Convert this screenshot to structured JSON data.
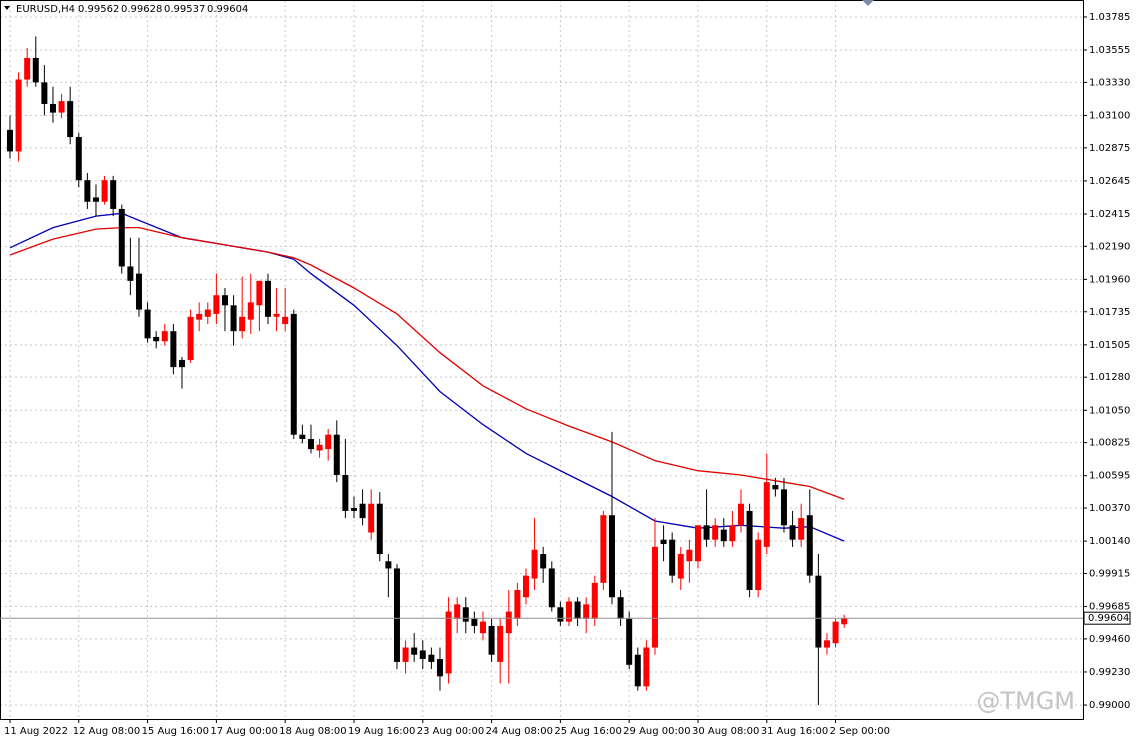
{
  "chart_data": {
    "type": "candlestick",
    "symbol": "EURUSD,H4",
    "up_color": "#ff0000",
    "down_color": "#000000",
    "open": [
      1.03,
      1.0285,
      1.0335,
      1.035,
      1.0333,
      1.0318,
      1.0312,
      1.032,
      1.0295,
      1.0265,
      1.0253,
      1.025,
      1.0265,
      1.0245,
      1.0205,
      1.02,
      1.0175,
      1.0156,
      1.0153,
      1.016,
      1.014,
      1.014,
      1.0168,
      1.017,
      1.0172,
      1.0185,
      1.0178,
      1.016,
      1.0168,
      1.0178,
      1.0195,
      1.017,
      1.0165,
      1.0172,
      1.0088,
      1.0085,
      1.0077,
      1.0078,
      1.0088,
      1.006,
      1.0037,
      1.004,
      1.002,
      1.004,
      1.0,
      0.9995,
      0.993,
      0.994,
      0.9938,
      0.9935,
      0.9932,
      0.9922,
      0.996,
      0.9968,
      0.996,
      0.995,
      0.9955,
      0.993,
      0.995,
      0.996,
      0.9975,
      0.9988,
      1.0005,
      0.9995,
      0.9968,
      0.9958,
      0.9972,
      0.996,
      0.996,
      0.9985,
      1.0032,
      0.9975,
      0.996,
      0.9935,
      0.9913,
      0.994,
      1.0015,
      1.0015,
      0.9988,
      1.0,
      1.0,
      1.0025,
      1.0015,
      1.0022,
      1.0014,
      1.0025,
      1.0035,
      0.998,
      1.001,
      1.0053,
      1.005,
      1.0025,
      1.0015,
      1.0032,
      0.999,
      0.994,
      0.9943,
      0.99562
    ],
    "high": [
      1.031,
      1.034,
      1.0357,
      1.0365,
      1.0345,
      1.033,
      1.0325,
      1.033,
      1.0298,
      1.027,
      1.0262,
      1.0268,
      1.0268,
      1.0248,
      1.0225,
      1.0225,
      1.018,
      1.016,
      1.0165,
      1.0165,
      1.0142,
      1.0175,
      1.018,
      1.018,
      1.02,
      1.019,
      1.0185,
      1.0198,
      1.02,
      1.0195,
      1.02,
      1.019,
      1.019,
      1.0175,
      1.0095,
      1.0095,
      1.0085,
      1.0092,
      1.0098,
      1.0085,
      1.0045,
      1.005,
      1.005,
      1.0048,
      1.0005,
      0.9998,
      0.9945,
      0.995,
      0.9945,
      0.994,
      0.994,
      0.9975,
      0.9975,
      0.9975,
      0.9965,
      0.9965,
      0.996,
      0.996,
      0.998,
      0.9985,
      0.9995,
      1.003,
      1.001,
      1.0,
      0.9972,
      0.9975,
      0.9975,
      0.9975,
      0.999,
      1.0035,
      1.009,
      0.998,
      0.9965,
      0.994,
      0.9945,
      1.003,
      1.0025,
      1.002,
      1.001,
      1.0015,
      1.0025,
      1.005,
      1.003,
      1.003,
      1.0035,
      1.005,
      1.004,
      1.002,
      1.0075,
      1.0058,
      1.0058,
      1.0035,
      1.004,
      1.005,
      1.0005,
      0.995,
      0.996,
      0.99628
    ],
    "low": [
      1.028,
      1.0278,
      1.033,
      1.033,
      1.031,
      1.0305,
      1.0308,
      1.029,
      1.026,
      1.0245,
      1.024,
      1.0248,
      1.024,
      1.02,
      1.0185,
      1.017,
      1.0152,
      1.0148,
      1.015,
      1.013,
      1.012,
      1.0138,
      1.016,
      1.0165,
      1.0165,
      1.016,
      1.015,
      1.0155,
      1.0158,
      1.016,
      1.0165,
      1.016,
      1.016,
      1.0085,
      1.0082,
      1.0075,
      1.0072,
      1.007,
      1.0055,
      1.003,
      1.003,
      1.0025,
      1.0015,
      1.0,
      0.9975,
      0.9925,
      0.9922,
      0.993,
      0.9925,
      0.9925,
      0.991,
      0.9915,
      0.995,
      0.995,
      0.995,
      0.9945,
      0.993,
      0.9915,
      0.9915,
      0.9955,
      0.997,
      0.998,
      0.9985,
      0.9965,
      0.9955,
      0.9955,
      0.9955,
      0.995,
      0.9955,
      0.998,
      0.997,
      0.9955,
      0.9925,
      0.991,
      0.991,
      0.9935,
      1.0,
      0.9985,
      0.998,
      0.9985,
      0.9995,
      1.001,
      1.001,
      1.001,
      1.001,
      1.002,
      0.9975,
      0.9975,
      1.0005,
      1.0045,
      1.002,
      1.001,
      1.001,
      0.9985,
      0.99,
      0.9935,
      0.994,
      0.99537
    ],
    "close": [
      1.0285,
      1.0335,
      1.035,
      1.0333,
      1.0318,
      1.0312,
      1.032,
      1.0295,
      1.0265,
      1.025,
      1.025,
      1.0265,
      1.0245,
      1.0205,
      1.0195,
      1.0175,
      1.0155,
      1.0153,
      1.016,
      1.0135,
      1.0135,
      1.017,
      1.0172,
      1.0175,
      1.0185,
      1.0178,
      1.016,
      1.017,
      1.018,
      1.0195,
      1.017,
      1.0172,
      1.017,
      1.0088,
      1.0085,
      1.0078,
      1.0081,
      1.0088,
      1.006,
      1.0035,
      1.0035,
      1.003,
      1.004,
      1.0005,
      0.9995,
      0.993,
      0.994,
      0.9935,
      0.9932,
      0.993,
      0.992,
      0.9965,
      0.997,
      0.9958,
      0.9955,
      0.9958,
      0.9935,
      0.9955,
      0.9965,
      0.998,
      0.999,
      1.0008,
      0.9995,
      0.9968,
      0.9958,
      0.9972,
      0.996,
      0.997,
      0.9985,
      1.0032,
      0.9975,
      0.996,
      0.9928,
      0.9913,
      0.994,
      1.001,
      1.0012,
      0.999,
      1.0005,
      1.0008,
      1.0025,
      1.0015,
      1.0025,
      1.0014,
      1.0025,
      1.004,
      0.998,
      1.0015,
      1.0055,
      1.005,
      1.0025,
      1.0015,
      1.003,
      0.999,
      0.994,
      0.9945,
      0.9958,
      0.99604
    ],
    "series": [
      {
        "color": "#0000b4",
        "x": [
          0,
          5,
          10,
          13,
          15,
          20,
          25,
          30,
          33,
          35,
          40,
          45,
          50,
          55,
          60,
          65,
          70,
          75,
          80,
          85,
          90,
          93,
          97
        ],
        "values": [
          1.0218,
          1.0232,
          1.024,
          1.0242,
          1.0237,
          1.0225,
          1.022,
          1.0215,
          1.021,
          1.02,
          1.0178,
          1.015,
          1.0118,
          1.0095,
          1.0075,
          1.006,
          1.0045,
          1.0028,
          1.0023,
          1.0025,
          1.0023,
          1.0024,
          1.0014
        ]
      },
      {
        "color": "#e00000",
        "x": [
          0,
          5,
          10,
          13,
          15,
          20,
          25,
          30,
          33,
          35,
          40,
          45,
          50,
          55,
          60,
          65,
          70,
          75,
          80,
          85,
          90,
          93,
          97
        ],
        "values": [
          1.0213,
          1.0224,
          1.0231,
          1.0232,
          1.0232,
          1.0225,
          1.022,
          1.0215,
          1.0211,
          1.0206,
          1.019,
          1.0172,
          1.0145,
          1.0122,
          1.0106,
          1.0094,
          1.0083,
          1.007,
          1.0063,
          1.006,
          1.0055,
          1.0052,
          1.0043
        ]
      }
    ],
    "xlim": [
      -1.16,
      124.77
    ],
    "ylim": [
      0.98903,
      1.03903
    ],
    "yticks": [
      1.03785,
      1.03555,
      {
        "value": 1.0333,
        "label": "1.03330"
      },
      {
        "value": 1.031,
        "label": "1.03100"
      },
      1.02875,
      1.02645,
      1.02415,
      {
        "value": 1.0219,
        "label": "1.02190"
      },
      {
        "value": 1.0196,
        "label": "1.01960"
      },
      1.01735,
      1.01505,
      {
        "value": 1.0128,
        "label": "1.01280"
      },
      {
        "value": 1.0105,
        "label": "1.01050"
      },
      1.00825,
      1.00595,
      {
        "value": 1.0037,
        "label": "1.00370"
      },
      {
        "value": 1.0014,
        "label": "1.00140"
      },
      0.99915,
      0.99685,
      {
        "value": 0.9946,
        "label": "0.99460"
      },
      {
        "value": 0.9923,
        "label": "0.99230"
      },
      {
        "value": 0.99,
        "label": "0.99000"
      }
    ],
    "xticks": [
      {
        "value": 0,
        "label": "11 Aug 2022"
      },
      {
        "value": 8,
        "label": "12 Aug 08:00"
      },
      {
        "value": 16,
        "label": "15 Aug 16:00"
      },
      {
        "value": 24,
        "label": "17 Aug 00:00"
      },
      {
        "value": 32,
        "label": "18 Aug 08:00"
      },
      {
        "value": 40,
        "label": "19 Aug 16:00"
      },
      {
        "value": 48,
        "label": "23 Aug 00:00"
      },
      {
        "value": 56,
        "label": "24 Aug 08:00"
      },
      {
        "value": 64,
        "label": "25 Aug 16:00"
      },
      {
        "value": 72,
        "label": "29 Aug 00:00"
      },
      {
        "value": 80,
        "label": "30 Aug 08:00"
      },
      {
        "value": 88,
        "label": "31 Aug 16:00"
      },
      {
        "value": 96,
        "label": "2 Sep 00:00"
      }
    ],
    "grid": true,
    "watermark": "@TMGM"
  }
}
